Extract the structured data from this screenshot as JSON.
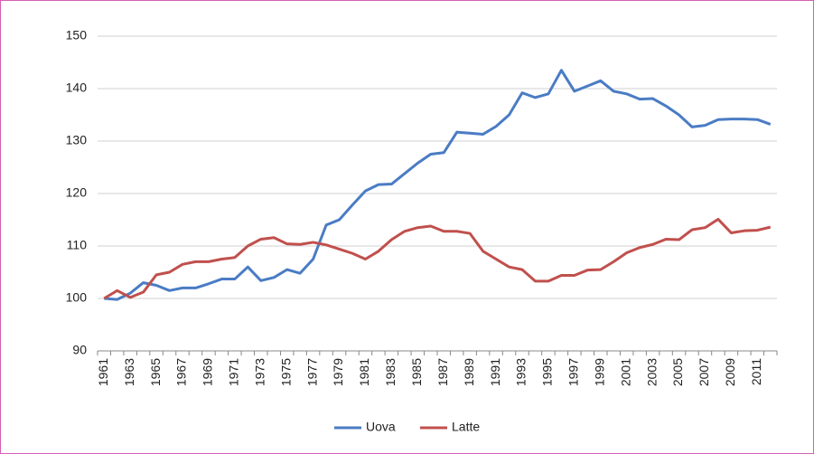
{
  "chart_data": {
    "type": "line",
    "categories": [
      "1961",
      null,
      "1963",
      null,
      "1965",
      null,
      "1967",
      null,
      "1969",
      null,
      "1971",
      null,
      "1973",
      null,
      "1975",
      null,
      "1977",
      null,
      "1979",
      null,
      "1981",
      null,
      "1983",
      null,
      "1985",
      null,
      "1987",
      null,
      "1989",
      null,
      "1991",
      null,
      "1993",
      null,
      "1995",
      null,
      "1997",
      null,
      "1999",
      null,
      "2001",
      null,
      "2003",
      null,
      "2005",
      null,
      "2007",
      null,
      "2009",
      null,
      "2011",
      null
    ],
    "series": [
      {
        "name": "Uova",
        "color": "#4a7cc4",
        "values": [
          100,
          99.8,
          101,
          103,
          102.5,
          101.5,
          102,
          102,
          102.8,
          103.7,
          103.7,
          106,
          103.4,
          104,
          105.5,
          104.8,
          107.5,
          114,
          115,
          117.8,
          120.5,
          121.7,
          121.8,
          123.8,
          125.8,
          127.5,
          127.8,
          131.7,
          131.5,
          131.3,
          132.8,
          135,
          139.2,
          138.3,
          139,
          143.5,
          139.5,
          140.5,
          141.5,
          139.5,
          139,
          138,
          138.1,
          136.7,
          135,
          132.7,
          133,
          134.1,
          134.2,
          134.2,
          134.1,
          133.2
        ]
      },
      {
        "name": "Latte",
        "color": "#c0504d",
        "values": [
          100,
          101.5,
          100.2,
          101.2,
          104.5,
          105,
          106.5,
          107,
          107,
          107.5,
          107.8,
          110,
          111.3,
          111.6,
          110.4,
          110.3,
          110.7,
          110.2,
          109.4,
          108.6,
          107.5,
          109,
          111.2,
          112.8,
          113.5,
          113.8,
          112.8,
          112.8,
          112.4,
          109,
          107.5,
          106,
          105.5,
          103.3,
          103.3,
          104.4,
          104.4,
          105.4,
          105.5,
          107,
          108.7,
          109.7,
          110.3,
          111.3,
          111.2,
          113.1,
          113.5,
          115.1,
          112.5,
          112.9,
          113,
          113.6
        ]
      }
    ],
    "ylim": [
      90,
      150
    ],
    "yticks": [
      90,
      100,
      110,
      120,
      130,
      140,
      150
    ],
    "grid": true,
    "legend": "bottom"
  }
}
